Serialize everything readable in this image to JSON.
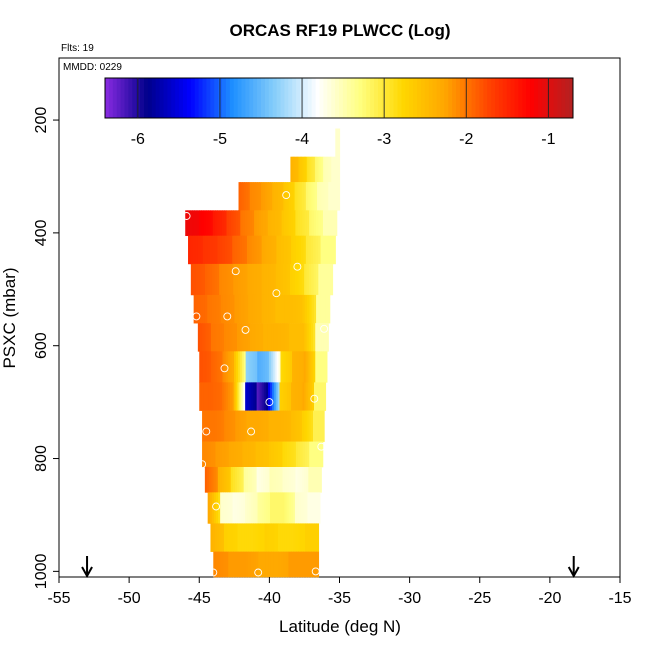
{
  "chart_data": {
    "type": "heatmap",
    "title": "ORCAS RF19 PLWCC (Log)",
    "flights_note": "Flts: 19",
    "date_note": "MMDD: 0229",
    "xlabel": "Latitude (deg N)",
    "ylabel": "PSXC (mbar)",
    "xlim": [
      -55,
      -15
    ],
    "ylim": [
      1010,
      90
    ],
    "x_ticks": [
      -55,
      -50,
      -45,
      -40,
      -35,
      -30,
      -25,
      -20,
      -15
    ],
    "x_tick_labels": [
      "-55",
      "-50",
      "-45",
      "-40",
      "-35",
      "-30",
      "-25",
      "-20",
      "-15"
    ],
    "y_ticks": [
      200,
      400,
      600,
      800,
      1000
    ],
    "y_tick_labels": [
      "200",
      "400",
      "600",
      "800",
      "1000"
    ],
    "colorbar": {
      "range": [
        -6.4,
        -0.7
      ],
      "ticks": [
        -6,
        -5,
        -4,
        -3,
        -2,
        -1
      ],
      "tick_labels": [
        "-6",
        "-5",
        "-4",
        "-3",
        "-2",
        "-1"
      ],
      "colors": [
        "#8a2be2",
        "#00008b",
        "#0000ff",
        "#1e90ff",
        "#87cefa",
        "#ffffff",
        "#ffff80",
        "#ffd700",
        "#ffa500",
        "#ff4500",
        "#ff0000",
        "#b22222"
      ]
    },
    "arrows_lat": [
      -53,
      -18.3
    ],
    "bands": [
      {
        "p_top": 215,
        "p_bot": 265,
        "lat_min": -35.3,
        "lat_max": -35.0,
        "values": [
          -3.6
        ]
      },
      {
        "p_top": 265,
        "p_bot": 310,
        "lat_min": -38.5,
        "lat_max": -35.0,
        "values": [
          -2.4,
          -2.6,
          -2.9,
          -3.2,
          -3.5,
          -3.6
        ]
      },
      {
        "p_top": 310,
        "p_bot": 360,
        "lat_min": -42.2,
        "lat_max": -35.0,
        "values": [
          -1.9,
          -2.1,
          -2.2,
          -2.4,
          -2.6,
          -2.9,
          -3.2,
          -3.5,
          -3.6
        ]
      },
      {
        "p_top": 360,
        "p_bot": 405,
        "lat_min": -46.0,
        "lat_max": -35.2,
        "values": [
          -1.1,
          -1.2,
          -1.4,
          -1.7,
          -2.0,
          -2.2,
          -2.4,
          -2.6,
          -2.9,
          -3.2,
          -3.5
        ]
      },
      {
        "p_top": 405,
        "p_bot": 455,
        "lat_min": -45.8,
        "lat_max": -35.3,
        "values": [
          -1.5,
          -1.6,
          -1.7,
          -1.9,
          -2.1,
          -2.3,
          -2.5,
          -2.7,
          -3.0,
          -3.3
        ]
      },
      {
        "p_top": 455,
        "p_bot": 510,
        "lat_min": -45.6,
        "lat_max": -35.5,
        "values": [
          -1.8,
          -1.9,
          -2.1,
          -2.2,
          -2.3,
          -2.4,
          -2.5,
          -2.7,
          -3.0,
          -3.4
        ]
      },
      {
        "p_top": 510,
        "p_bot": 560,
        "lat_min": -45.4,
        "lat_max": -35.7,
        "values": [
          -1.9,
          -2.0,
          -2.1,
          -2.2,
          -2.3,
          -2.4,
          -2.5,
          -2.5,
          -2.6,
          -3.4
        ]
      },
      {
        "p_top": 560,
        "p_bot": 610,
        "lat_min": -45.1,
        "lat_max": -35.8,
        "values": [
          -1.8,
          -2.0,
          -2.1,
          -2.2,
          -2.3,
          -2.4,
          -2.4,
          -2.5,
          -2.5,
          -3.5
        ]
      },
      {
        "p_top": 610,
        "p_bot": 665,
        "lat_min": -45.0,
        "lat_max": -35.9,
        "values": [
          -1.8,
          -1.9,
          -2.1,
          -2.6,
          -4.3,
          -4.6,
          -4.3,
          -2.8,
          -2.4,
          -2.3,
          -3.3
        ]
      },
      {
        "p_top": 665,
        "p_bot": 715,
        "lat_min": -45.0,
        "lat_max": -36.0,
        "values": [
          -1.9,
          -1.9,
          -2.0,
          -2.5,
          -5.6,
          -6.2,
          -5.4,
          -2.7,
          -2.4,
          -2.3,
          -3.2
        ]
      },
      {
        "p_top": 715,
        "p_bot": 770,
        "lat_min": -44.8,
        "lat_max": -36.1,
        "values": [
          -2.0,
          -2.0,
          -2.1,
          -2.2,
          -2.3,
          -2.3,
          -2.4,
          -2.4,
          -2.5,
          -2.7,
          -3.1
        ]
      },
      {
        "p_top": 770,
        "p_bot": 815,
        "lat_min": -44.8,
        "lat_max": -36.2,
        "values": [
          -2.1,
          -2.2,
          -2.3,
          -2.4,
          -2.5,
          -2.6,
          -2.8,
          -3.0,
          -3.3
        ]
      },
      {
        "p_top": 815,
        "p_bot": 860,
        "lat_min": -44.6,
        "lat_max": -36.3,
        "values": [
          -1.9,
          -2.4,
          -2.9,
          -3.4,
          -3.7,
          -3.5,
          -3.6,
          -3.7,
          -3.5
        ]
      },
      {
        "p_top": 860,
        "p_bot": 915,
        "lat_min": -44.4,
        "lat_max": -36.4,
        "values": [
          -2.3,
          -3.6,
          -3.7,
          -3.6,
          -3.4,
          -3.2,
          -3.2,
          -3.6,
          -3.7
        ]
      },
      {
        "p_top": 915,
        "p_bot": 965,
        "lat_min": -44.2,
        "lat_max": -36.5,
        "values": [
          -2.4,
          -2.7,
          -2.8,
          -2.8,
          -2.7,
          -2.8,
          -2.8,
          -2.7
        ]
      },
      {
        "p_top": 965,
        "p_bot": 1010,
        "lat_min": -44.0,
        "lat_max": -36.5,
        "values": [
          -2.1,
          -2.2,
          -2.2,
          -2.3,
          -2.3,
          -2.2,
          -2.2
        ]
      }
    ],
    "markers": [
      {
        "lat": -45.9,
        "p": 370
      },
      {
        "lat": -38.8,
        "p": 333
      },
      {
        "lat": -42.4,
        "p": 468
      },
      {
        "lat": -38.0,
        "p": 460
      },
      {
        "lat": -39.5,
        "p": 507
      },
      {
        "lat": -45.2,
        "p": 548
      },
      {
        "lat": -43.0,
        "p": 548
      },
      {
        "lat": -41.7,
        "p": 572
      },
      {
        "lat": -36.1,
        "p": 570
      },
      {
        "lat": -43.2,
        "p": 640
      },
      {
        "lat": -40.0,
        "p": 700
      },
      {
        "lat": -36.8,
        "p": 694
      },
      {
        "lat": -44.5,
        "p": 752
      },
      {
        "lat": -41.3,
        "p": 752
      },
      {
        "lat": -36.3,
        "p": 779
      },
      {
        "lat": -44.8,
        "p": 810
      },
      {
        "lat": -43.8,
        "p": 885
      },
      {
        "lat": -44.0,
        "p": 1002
      },
      {
        "lat": -40.8,
        "p": 1002
      },
      {
        "lat": -36.7,
        "p": 1000
      }
    ]
  }
}
